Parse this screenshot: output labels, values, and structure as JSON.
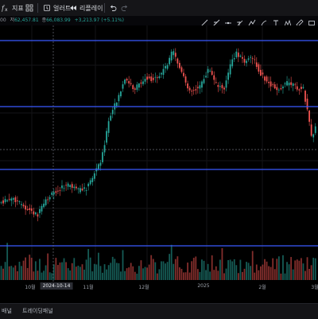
{
  "toolbar": {
    "indicator_label": "지표",
    "alert_label": "얼러트",
    "replay_label": "리플레이"
  },
  "infobar": {
    "open_label": "00",
    "low_label": "저",
    "low_value": "62,457.81",
    "close_label": "종",
    "close_value": "66,083.99",
    "change_value": "+3,213.97",
    "change_pct": "(+5.11%)"
  },
  "xaxis": {
    "labels": [
      "10월",
      "2024-10-14",
      "11월",
      "12월",
      "2025",
      "2월",
      "3월"
    ],
    "highlight": "2024-10-14"
  },
  "bottombar": {
    "left_label": "배널",
    "right_label": "트레이딩패널"
  },
  "colors": {
    "background": "#000000",
    "up_candle": "#26a69a",
    "down_candle": "#ef5350",
    "hline": "#3b59ff"
  },
  "icons": {
    "indicator": "fx-icon",
    "layout": "grid-icon",
    "alert": "alarm-icon",
    "replay": "replay-icon",
    "undo": "undo-icon",
    "redo": "redo-icon"
  }
}
